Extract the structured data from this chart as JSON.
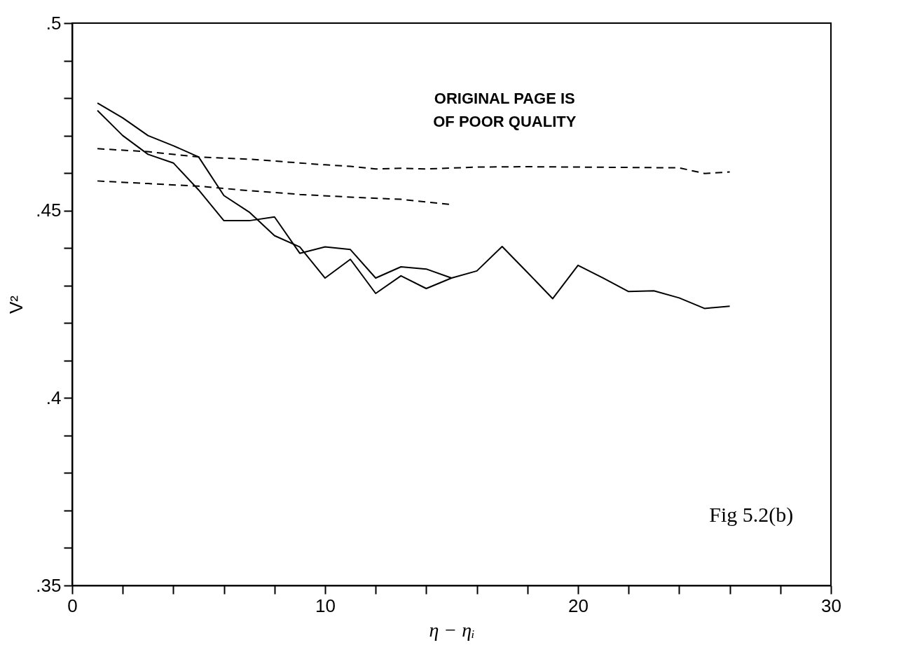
{
  "chart_data": {
    "type": "line",
    "xlabel": "η − ηᵢ",
    "ylabel": "V²",
    "xlim": [
      0,
      30
    ],
    "ylim": [
      0.35,
      0.5
    ],
    "xticks": [
      0,
      {
        "value": 2,
        "label": null
      },
      {
        "value": 4,
        "label": null
      },
      {
        "value": 6,
        "label": null
      },
      {
        "value": 8,
        "label": null
      },
      10,
      {
        "value": 12,
        "label": null
      },
      {
        "value": 14,
        "label": null
      },
      {
        "value": 16,
        "label": null
      },
      {
        "value": 18,
        "label": null
      },
      20,
      {
        "value": 22,
        "label": null
      },
      {
        "value": 24,
        "label": null
      },
      {
        "value": 26,
        "label": null
      },
      {
        "value": 28,
        "label": null
      },
      30
    ],
    "yticks": [
      {
        "value": 0.35,
        "label": ".35"
      },
      {
        "value": 0.36,
        "label": null
      },
      {
        "value": 0.37,
        "label": null
      },
      {
        "value": 0.38,
        "label": null
      },
      {
        "value": 0.39,
        "label": null
      },
      {
        "value": 0.4,
        "label": ".4"
      },
      {
        "value": 0.41,
        "label": null
      },
      {
        "value": 0.42,
        "label": null
      },
      {
        "value": 0.43,
        "label": null
      },
      {
        "value": 0.44,
        "label": null
      },
      {
        "value": 0.45,
        "label": ".45"
      },
      {
        "value": 0.46,
        "label": null
      },
      {
        "value": 0.47,
        "label": null
      },
      {
        "value": 0.48,
        "label": null
      },
      {
        "value": 0.49,
        "label": null
      },
      {
        "value": 0.5,
        "label": ".5"
      }
    ],
    "grid": false,
    "legend": false,
    "marker": "none",
    "series": [
      {
        "color": "#000000",
        "line_style": "solid",
        "x": [
          1,
          2,
          3,
          4,
          5,
          6,
          7,
          8,
          9,
          10,
          11,
          12,
          13,
          14,
          15,
          16,
          17,
          18,
          19,
          20,
          21,
          22,
          23,
          24,
          25,
          26
        ],
        "values": [
          0.4787,
          0.4747,
          0.47,
          0.4673,
          0.4643,
          0.454,
          0.4496,
          0.4433,
          0.4403,
          0.432,
          0.437,
          0.4279,
          0.4326,
          0.4292,
          0.432,
          0.4339,
          0.4404,
          0.4335,
          0.4265,
          0.4354,
          0.432,
          0.4284,
          0.4286,
          0.4267,
          0.4239,
          0.4245
        ]
      },
      {
        "color": "#000000",
        "line_style": "solid",
        "x": [
          1,
          2,
          3,
          4,
          5,
          6,
          7,
          8,
          9,
          10,
          11,
          12,
          13,
          14,
          15
        ],
        "values": [
          0.4767,
          0.47,
          0.465,
          0.4627,
          0.4555,
          0.4473,
          0.4473,
          0.4483,
          0.4386,
          0.4403,
          0.4396,
          0.432,
          0.435,
          0.4344,
          0.432
        ]
      },
      {
        "color": "#000000",
        "line_style": "dashed",
        "x": [
          1,
          3,
          5,
          7,
          9,
          10,
          11,
          12,
          13,
          14,
          16,
          18,
          20,
          22,
          24,
          25,
          26
        ],
        "values": [
          0.4665,
          0.4657,
          0.4643,
          0.4637,
          0.4627,
          0.4622,
          0.4618,
          0.4611,
          0.4613,
          0.4611,
          0.4616,
          0.4617,
          0.4616,
          0.4615,
          0.4614,
          0.4599,
          0.4603
        ]
      },
      {
        "color": "#000000",
        "line_style": "dashed",
        "x": [
          1,
          3,
          5,
          7,
          9,
          11,
          13,
          15
        ],
        "values": [
          0.4579,
          0.4572,
          0.4565,
          0.4553,
          0.4543,
          0.4536,
          0.453,
          0.4516
        ]
      }
    ],
    "annotations": [
      "ORIGINAL PAGE IS",
      "OF POOR QUALITY",
      "Fig 5.2(b)"
    ]
  }
}
